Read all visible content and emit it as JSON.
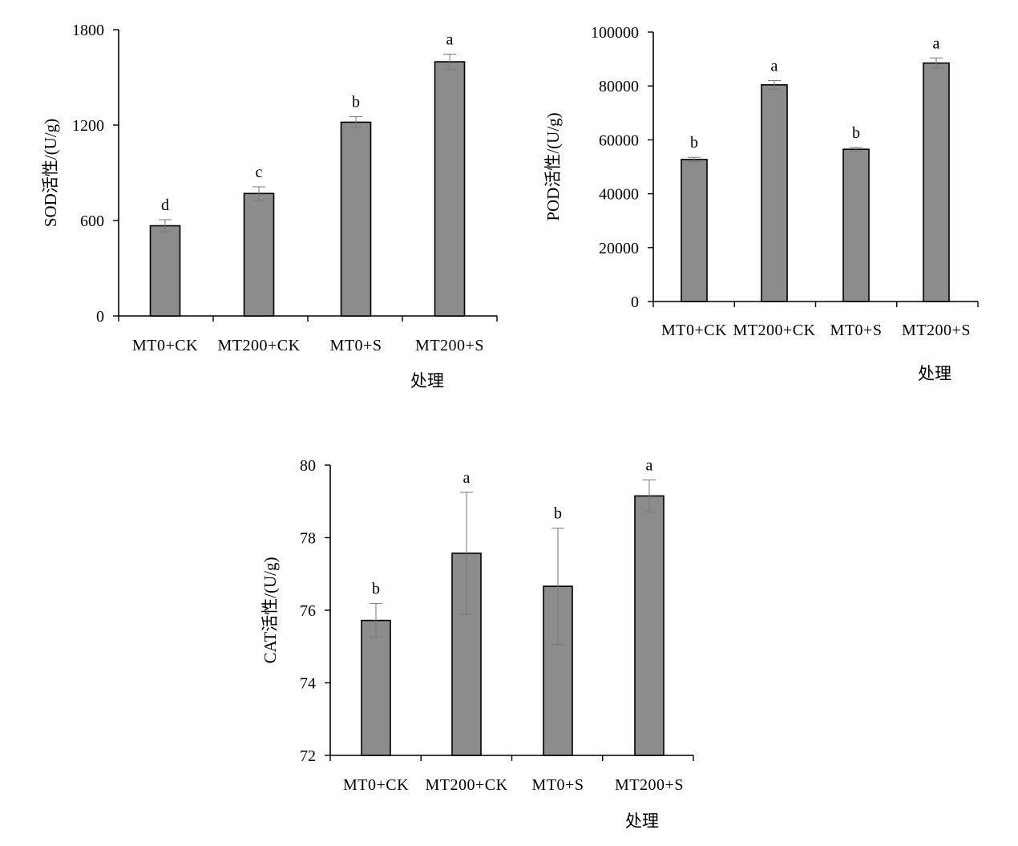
{
  "chart_data": [
    {
      "type": "bar",
      "categories": [
        "MT0+CK",
        "MT200+CK",
        "MT0+S",
        "MT200+S"
      ],
      "values": [
        567,
        770,
        1218,
        1598
      ],
      "error": [
        38,
        42,
        35,
        48
      ],
      "significance": [
        "d",
        "c",
        "b",
        "a"
      ],
      "ylim": [
        0,
        1800
      ],
      "yticks": [
        "0",
        "600",
        "1200",
        "1800"
      ],
      "xlabel": "处理",
      "ylabel": "SOD活性/(U/g)",
      "grid": false,
      "bar_color": "#8c8c8c"
    },
    {
      "type": "bar",
      "categories": [
        "MT0+CK",
        "MT200+CK",
        "MT0+S",
        "MT200+S"
      ],
      "values": [
        52700,
        80400,
        56500,
        88500
      ],
      "error": [
        800,
        1600,
        700,
        1900
      ],
      "significance": [
        "b",
        "a",
        "b",
        "a"
      ],
      "ylim": [
        0,
        100000
      ],
      "yticks": [
        "0",
        "20000",
        "40000",
        "60000",
        "80000",
        "100000"
      ],
      "xlabel": "处理",
      "ylabel": "POD活性/(U/g)",
      "grid": false,
      "bar_color": "#8c8c8c"
    },
    {
      "type": "bar",
      "categories": [
        "MT0+CK",
        "MT200+CK",
        "MT0+S",
        "MT200+S"
      ],
      "values": [
        75.72,
        77.57,
        76.66,
        79.15
      ],
      "error": [
        0.47,
        1.68,
        1.6,
        0.44
      ],
      "significance": [
        "b",
        "a",
        "b",
        "a"
      ],
      "ylim": [
        72,
        80
      ],
      "yticks": [
        "72",
        "74",
        "76",
        "78",
        "80"
      ],
      "xlabel": "处理",
      "ylabel": "CAT活性/(U/g)",
      "grid": false,
      "bar_color": "#8c8c8c"
    }
  ]
}
